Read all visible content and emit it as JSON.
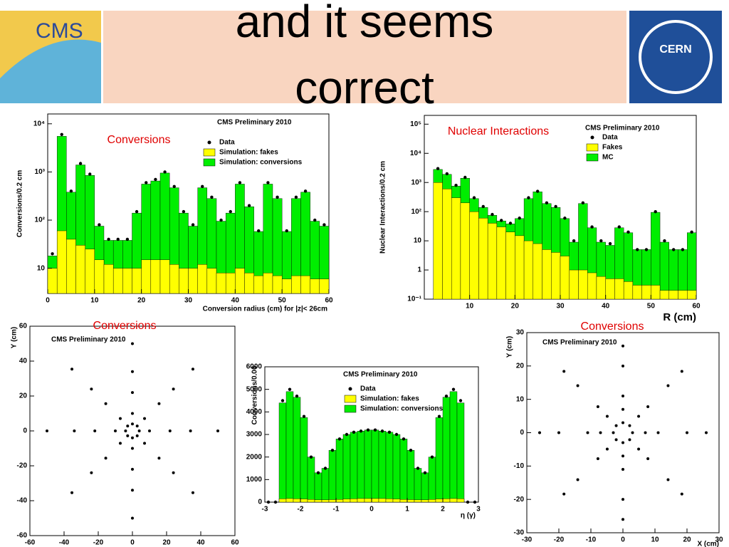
{
  "header": {
    "title_lines": [
      "and it seems",
      "correct"
    ],
    "left_logo": "CMS",
    "right_logo": "CERN"
  },
  "chart_data": [
    {
      "type": "histogram",
      "title": "CMS Preliminary 2010",
      "annotation": "Conversions",
      "xlabel": "Conversion radius (cm) for |z|< 26cm",
      "ylabel": "Conversions/0.2 cm",
      "log_y": true,
      "bins": [
        0,
        2,
        4,
        6,
        8,
        10,
        12,
        14,
        16,
        18,
        20,
        22,
        24,
        26,
        28,
        30,
        32,
        34,
        36,
        38,
        40,
        42,
        44,
        46,
        48,
        50,
        52,
        54,
        56,
        58,
        60
      ],
      "series": [
        {
          "name": "Simulation: conversions",
          "style": "fill",
          "color": "#00ee00",
          "values": [
            18,
            5500,
            380,
            1400,
            850,
            75,
            38,
            38,
            38,
            140,
            560,
            650,
            950,
            470,
            140,
            75,
            470,
            280,
            95,
            140,
            560,
            190,
            58,
            560,
            280,
            58,
            280,
            380,
            95,
            75
          ]
        },
        {
          "name": "Simulation: fakes",
          "style": "fill",
          "color": "#ffff00",
          "values": [
            10,
            60,
            40,
            30,
            25,
            15,
            12,
            10,
            10,
            10,
            15,
            15,
            15,
            12,
            10,
            10,
            12,
            10,
            8,
            8,
            10,
            8,
            7,
            8,
            7,
            6,
            7,
            7,
            6,
            6
          ]
        },
        {
          "name": "Data",
          "style": "points",
          "color": "#000000",
          "values": [
            20,
            6000,
            400,
            1500,
            900,
            80,
            40,
            40,
            40,
            150,
            600,
            700,
            1000,
            500,
            150,
            80,
            500,
            300,
            100,
            150,
            600,
            200,
            60,
            600,
            300,
            60,
            300,
            400,
            100,
            80
          ]
        }
      ],
      "xlim": [
        0,
        60
      ],
      "xticks": [
        0,
        10,
        20,
        30,
        40,
        50,
        60
      ],
      "ylim": [
        3,
        16000
      ],
      "yticks": [
        {
          "value": 10,
          "label": "10"
        },
        {
          "value": 100,
          "label": "10²"
        },
        {
          "value": 1000,
          "label": "10³"
        },
        {
          "value": 10000,
          "label": "10⁴"
        }
      ]
    },
    {
      "type": "histogram",
      "title": "CMS Preliminary 2010",
      "annotation": "Nuclear Interactions",
      "xlabel": "R (cm)",
      "ylabel": "Nuclear Interactions/0.2 cm",
      "log_y": true,
      "bins": [
        2,
        4,
        6,
        8,
        10,
        12,
        14,
        16,
        18,
        20,
        22,
        24,
        26,
        28,
        30,
        32,
        34,
        36,
        38,
        40,
        42,
        44,
        46,
        48,
        50,
        52,
        54,
        56,
        58,
        60
      ],
      "series": [
        {
          "name": "MC",
          "style": "fill",
          "color": "#00ee00",
          "values": [
            2800,
            1900,
            750,
            1400,
            280,
            140,
            75,
            48,
            38,
            58,
            280,
            480,
            190,
            140,
            58,
            9,
            190,
            28,
            9,
            7,
            28,
            19,
            5,
            5,
            95,
            9,
            5,
            5,
            19
          ]
        },
        {
          "name": "Fakes",
          "style": "fill",
          "color": "#ffff00",
          "values": [
            1000,
            600,
            300,
            200,
            100,
            60,
            40,
            30,
            20,
            15,
            10,
            8,
            5,
            4,
            3,
            1,
            1,
            0.8,
            0.6,
            0.5,
            0.5,
            0.4,
            0.3,
            0.3,
            0.3,
            0.2,
            0.2,
            0.2,
            0.2
          ]
        },
        {
          "name": "Data",
          "style": "points",
          "color": "#000000",
          "values": [
            3000,
            2000,
            800,
            1500,
            300,
            150,
            80,
            50,
            40,
            60,
            300,
            500,
            200,
            150,
            60,
            10,
            200,
            30,
            10,
            8,
            30,
            20,
            5,
            5,
            100,
            10,
            5,
            5,
            20
          ]
        }
      ],
      "xlim": [
        0,
        60
      ],
      "xticks": [
        10,
        20,
        30,
        40,
        50,
        60
      ],
      "ylim": [
        0.1,
        200000
      ],
      "yticks": [
        {
          "value": 0.1,
          "label": "10⁻¹"
        },
        1,
        10,
        {
          "value": 100,
          "label": "10²"
        },
        {
          "value": 1000,
          "label": "10³"
        },
        {
          "value": 10000,
          "label": "10⁴"
        },
        {
          "value": 100000,
          "label": "10⁵"
        }
      ]
    },
    {
      "type": "scatter",
      "title": "CMS Preliminary 2010",
      "annotation": "Conversions",
      "ylabel": "Y (cm)",
      "color": "#000000",
      "x": [
        4,
        2.8,
        0,
        -2.8,
        -4,
        -2.8,
        0,
        2.8,
        10,
        7.1,
        0,
        -7.1,
        -10,
        -7.1,
        0,
        7.1,
        22,
        15.6,
        0,
        -15.6,
        -22,
        -15.6,
        0,
        15.6,
        34,
        24,
        0,
        -24,
        -34,
        -24,
        0,
        24,
        50,
        35.4,
        0,
        -35.4,
        -50,
        -35.4,
        0,
        35.4
      ],
      "y": [
        0,
        2.8,
        4,
        2.8,
        0,
        -2.8,
        -4,
        -2.8,
        0,
        7.1,
        10,
        7.1,
        0,
        -7.1,
        -10,
        -7.1,
        0,
        15.6,
        22,
        15.6,
        0,
        -15.6,
        -22,
        -15.6,
        0,
        24,
        34,
        24,
        0,
        -24,
        -34,
        -24,
        0,
        35.4,
        50,
        35.4,
        0,
        -35.4,
        -50,
        -35.4
      ],
      "xlim": [
        -60,
        60
      ],
      "xticks": [
        -60,
        -40,
        -20,
        0,
        20,
        40,
        60
      ],
      "ylim": [
        -60,
        60
      ],
      "yticks": [
        -60,
        -40,
        -20,
        0,
        20,
        40,
        60
      ]
    },
    {
      "type": "histogram",
      "title": "CMS Preliminary 2010",
      "xlabel": "η (γ)",
      "ylabel": "Conversions/0.06",
      "log_y": false,
      "bins": [
        -3,
        -2.8,
        -2.6,
        -2.4,
        -2.2,
        -2,
        -1.8,
        -1.6,
        -1.4,
        -1.2,
        -1,
        -0.8,
        -0.6,
        -0.4,
        -0.2,
        0,
        0.2,
        0.4,
        0.6,
        0.8,
        1,
        1.2,
        1.4,
        1.6,
        1.8,
        2,
        2.2,
        2.4,
        2.6,
        2.8,
        3
      ],
      "series": [
        {
          "name": "Simulation: conversions",
          "style": "fill",
          "color": "#00ee00",
          "values": [
            0,
            0,
            4400,
            4900,
            4650,
            3750,
            2000,
            1300,
            1500,
            2300,
            2800,
            3000,
            3100,
            3150,
            3200,
            3200,
            3150,
            3100,
            3000,
            2800,
            2300,
            1500,
            1300,
            2000,
            3750,
            4650,
            4900,
            4400,
            0,
            0
          ]
        },
        {
          "name": "Simulation: fakes",
          "style": "fill",
          "color": "#ffff00",
          "values": [
            0,
            0,
            150,
            160,
            150,
            140,
            120,
            100,
            100,
            110,
            120,
            140,
            150,
            160,
            160,
            160,
            160,
            150,
            140,
            120,
            110,
            100,
            100,
            120,
            140,
            150,
            160,
            150,
            0,
            0
          ]
        },
        {
          "name": "Data",
          "style": "points",
          "color": "#000000",
          "values": [
            0,
            0,
            4500,
            5000,
            4700,
            3800,
            2000,
            1300,
            1500,
            2300,
            2800,
            3000,
            3100,
            3150,
            3200,
            3200,
            3150,
            3100,
            3000,
            2800,
            2300,
            1500,
            1300,
            2000,
            3800,
            4700,
            5000,
            4500,
            0,
            0
          ]
        }
      ],
      "xlim": [
        -3,
        3
      ],
      "xticks": [
        -3,
        -2,
        -1,
        0,
        1,
        2,
        3
      ],
      "ylim": [
        0,
        6000
      ],
      "yticks": [
        0,
        1000,
        2000,
        3000,
        4000,
        5000,
        6000
      ]
    },
    {
      "type": "scatter",
      "title": "CMS Preliminary 2010",
      "annotation": "Conversions",
      "xlabel": "X (cm)",
      "ylabel": "Y (cm)",
      "color": "#000000",
      "x": [
        3,
        2.1,
        0,
        -2.1,
        -3,
        -2.1,
        0,
        2.1,
        7,
        4.9,
        0,
        -4.9,
        -7,
        -4.9,
        0,
        4.9,
        11,
        7.8,
        0,
        -7.8,
        -11,
        -7.8,
        0,
        7.8,
        20,
        14.1,
        0,
        -14.1,
        -20,
        -14.1,
        0,
        14.1,
        26,
        18.4,
        0,
        -18.4,
        -26,
        -18.4,
        0,
        18.4
      ],
      "y": [
        0,
        2.1,
        3,
        2.1,
        0,
        -2.1,
        -3,
        -2.1,
        0,
        4.9,
        7,
        4.9,
        0,
        -4.9,
        -7,
        -4.9,
        0,
        7.8,
        11,
        7.8,
        0,
        -7.8,
        -11,
        -7.8,
        0,
        14.1,
        20,
        14.1,
        0,
        -14.1,
        -20,
        -14.1,
        0,
        18.4,
        26,
        18.4,
        0,
        -18.4,
        -26,
        -18.4
      ],
      "xlim": [
        -30,
        30
      ],
      "xticks": [
        -30,
        -20,
        -10,
        0,
        10,
        20,
        30
      ],
      "ylim": [
        -30,
        30
      ],
      "yticks": [
        -30,
        -20,
        -10,
        0,
        10,
        20,
        30
      ]
    }
  ]
}
